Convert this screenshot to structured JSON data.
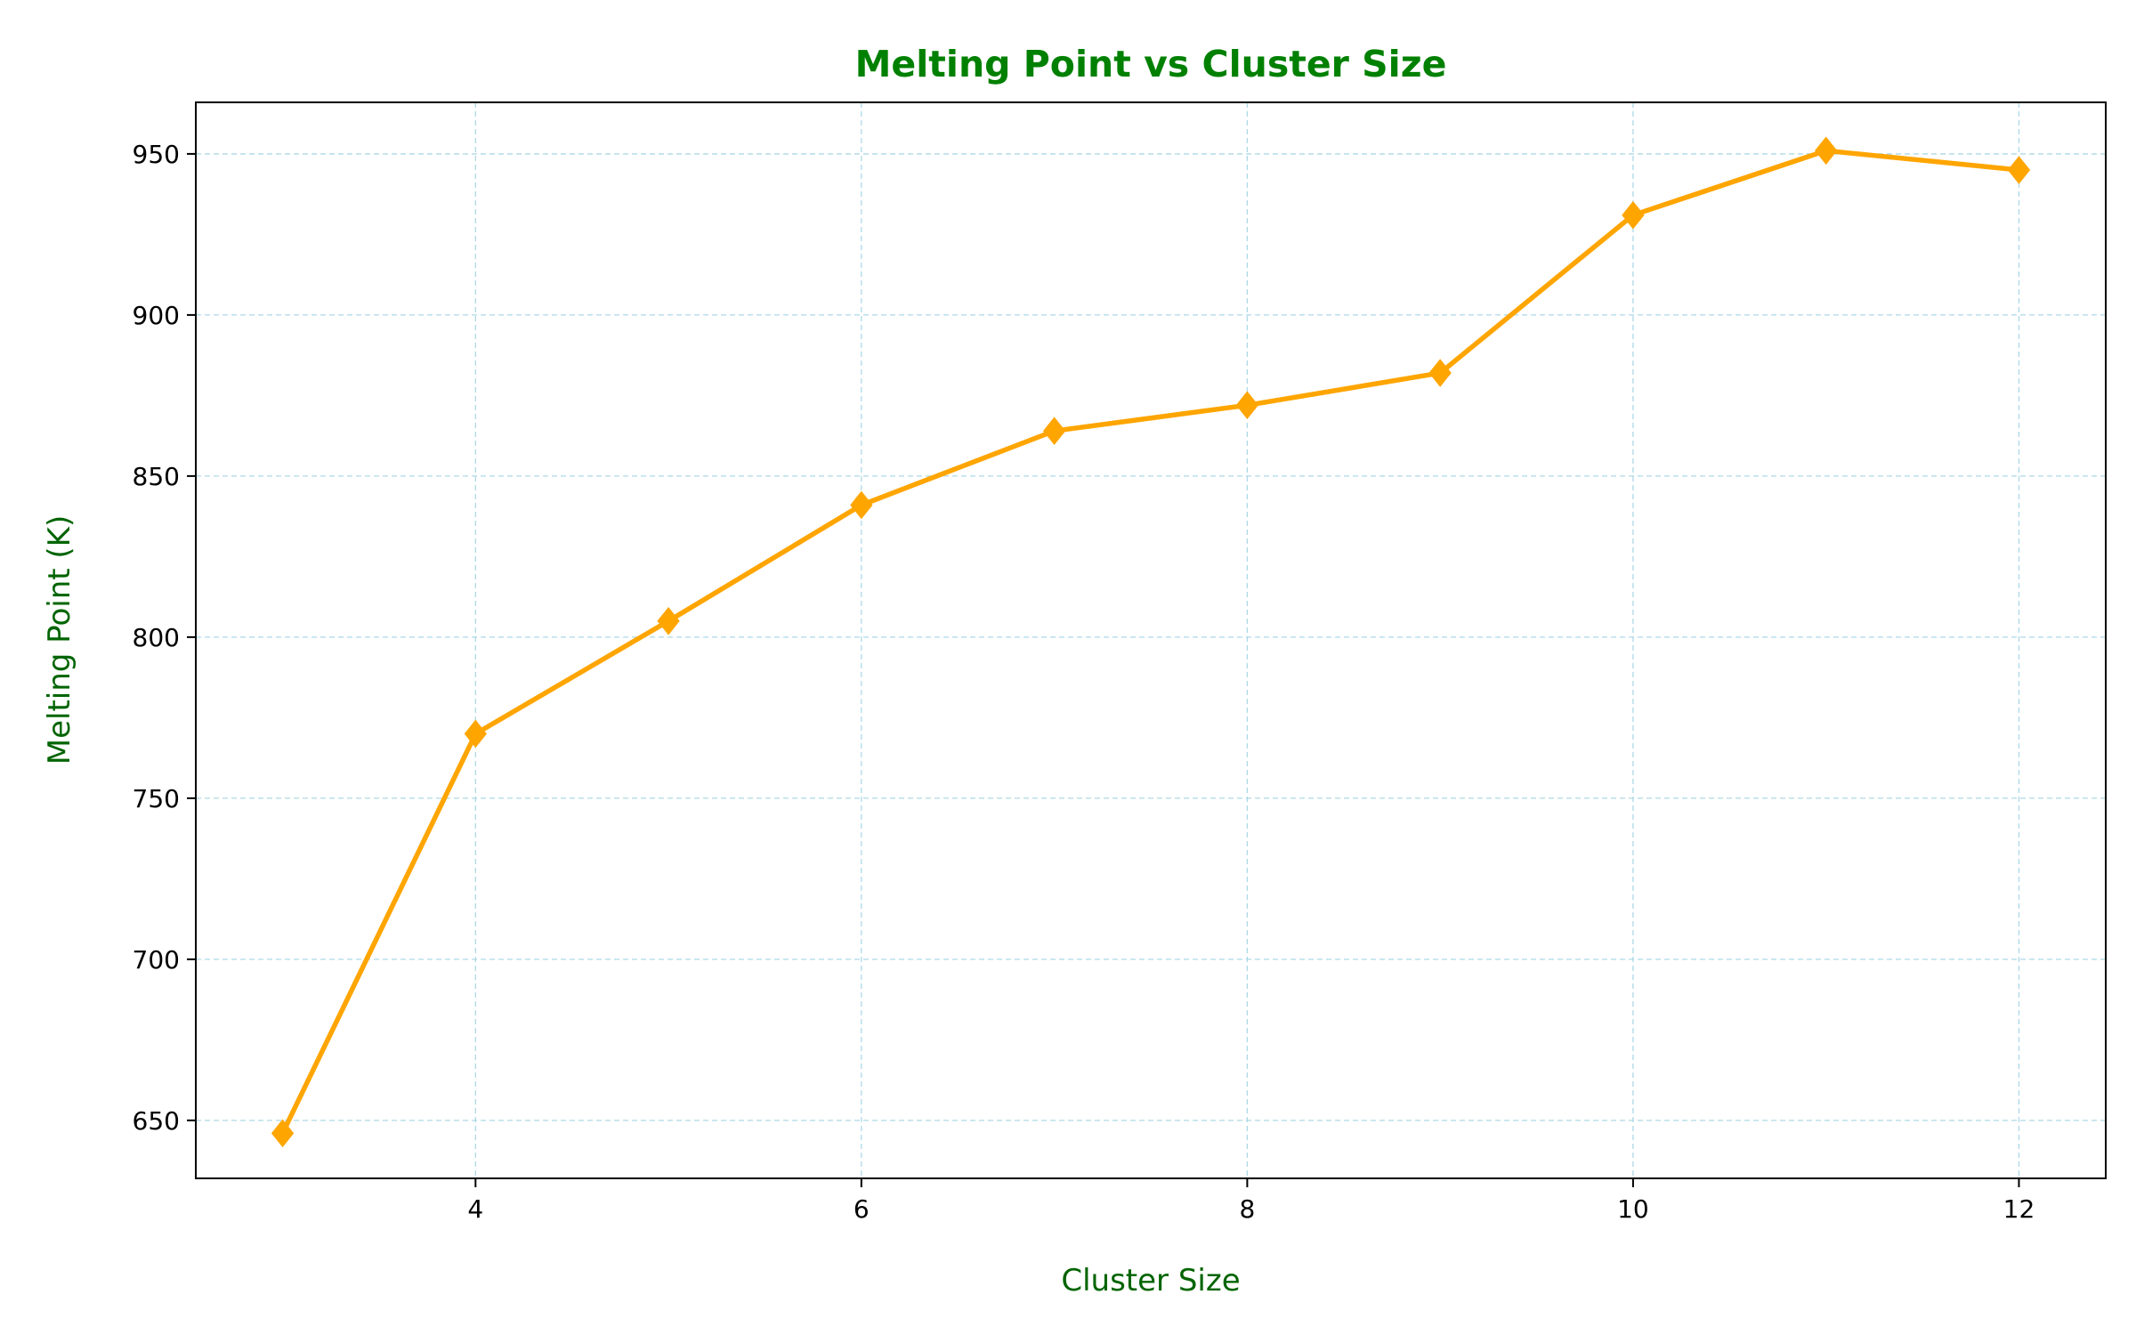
{
  "colors": {
    "line": "#ffa500",
    "title": "#008000",
    "axis_label": "#006400",
    "grid": "#add8e6",
    "frame": "#000000"
  },
  "chart_data": {
    "type": "line",
    "title": "Melting Point vs Cluster Size",
    "xlabel": "Cluster Size",
    "ylabel": "Melting Point (K)",
    "x": [
      3,
      4,
      5,
      6,
      7,
      8,
      9,
      10,
      11,
      12
    ],
    "series": [
      {
        "values": [
          646,
          770,
          805,
          841,
          864,
          872,
          882,
          931,
          951,
          945
        ],
        "marker": "diamond"
      }
    ],
    "xlim": [
      2.55,
      12.45
    ],
    "ylim": [
      632,
      966
    ],
    "xticks": [
      4,
      6,
      8,
      10,
      12
    ],
    "yticks": [
      650,
      700,
      750,
      800,
      850,
      900,
      950
    ],
    "grid": true,
    "grid_style": "dashed",
    "legend": "none"
  }
}
